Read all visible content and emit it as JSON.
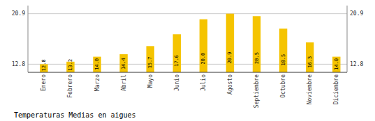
{
  "chart_data": {
    "type": "bar",
    "title": "Temperaturas Medias en aigues",
    "categories": [
      "Enero",
      "Febrero",
      "Marzo",
      "Abril",
      "Mayo",
      "Junio",
      "Julio",
      "Agosto",
      "Septiembre",
      "Octubre",
      "Noviembre",
      "Diciembre"
    ],
    "values": [
      12.8,
      13.2,
      14.0,
      14.4,
      15.7,
      17.6,
      20.0,
      20.9,
      20.5,
      18.5,
      16.3,
      14.0
    ],
    "value_labels": [
      "12.8",
      "13.2",
      "14.0",
      "14.4",
      "15.7",
      "17.6",
      "20.0",
      "20.9",
      "20.5",
      "18.5",
      "16.3",
      "14.0"
    ],
    "color": "#F5C400",
    "ylim": [
      11.5,
      22.2
    ],
    "yticks": [
      12.8,
      20.9
    ],
    "grid": true,
    "data_labels": true
  }
}
